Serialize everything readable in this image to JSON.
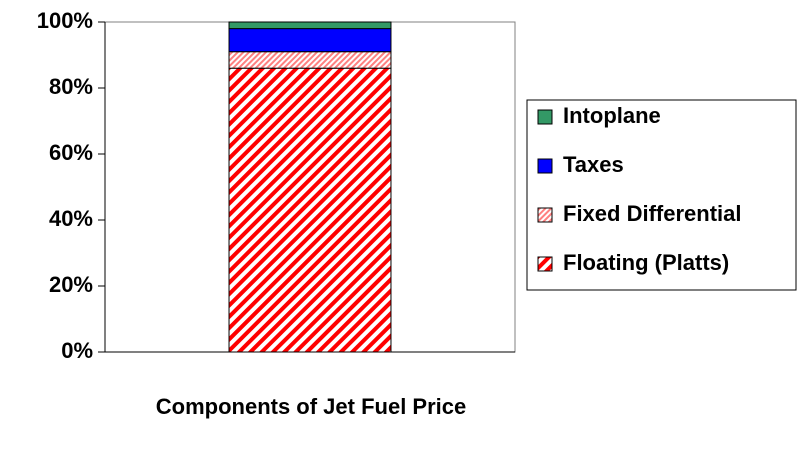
{
  "chart_data": {
    "type": "stacked-bar",
    "categories": [
      "Components of Jet Fuel Price"
    ],
    "series": [
      {
        "name": "Floating (Platts)",
        "color": "#ff0000",
        "fill_style": "diagonal-stripes",
        "values": [
          86
        ]
      },
      {
        "name": "Fixed Differential",
        "color": "#ff8080",
        "fill_style": "diagonal-hatch",
        "values": [
          5
        ]
      },
      {
        "name": "Taxes",
        "color": "#0000ff",
        "fill_style": "solid",
        "values": [
          7
        ]
      },
      {
        "name": "Intoplane",
        "color": "#339966",
        "fill_style": "solid",
        "values": [
          2
        ]
      }
    ],
    "ylim": [
      0,
      100
    ],
    "yticks": [
      {
        "value": 0,
        "label": "0%"
      },
      {
        "value": 20,
        "label": "20%"
      },
      {
        "value": 40,
        "label": "40%"
      },
      {
        "value": 60,
        "label": "60%"
      },
      {
        "value": 80,
        "label": "80%"
      },
      {
        "value": 100,
        "label": "100%"
      }
    ],
    "legend": "right"
  }
}
